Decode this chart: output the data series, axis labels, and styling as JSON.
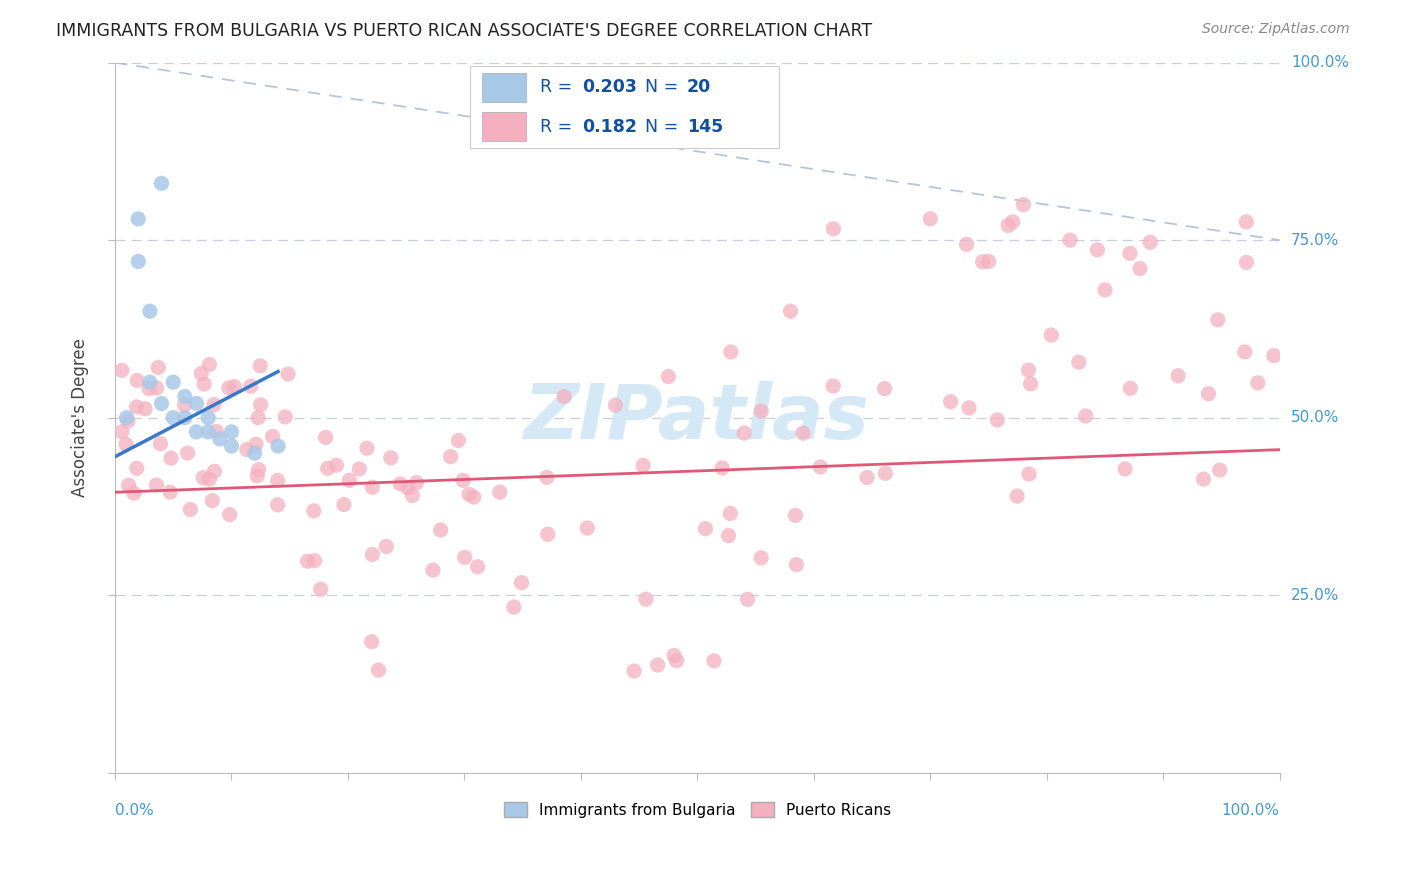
{
  "title": "IMMIGRANTS FROM BULGARIA VS PUERTO RICAN ASSOCIATE'S DEGREE CORRELATION CHART",
  "source": "Source: ZipAtlas.com",
  "ylabel": "Associate's Degree",
  "bulgaria_color": "#a8c8e8",
  "puerto_rico_color": "#f4b0c0",
  "trend_bulgaria_color": "#3a78c9",
  "trend_pr_color": "#e05878",
  "diag_color": "#a0b8d0",
  "bg_color": "#ffffff",
  "grid_color": "#c8cedd",
  "label_color": "#4499cc",
  "title_color": "#222222",
  "legend_text_color": "#1050a0",
  "watermark_color": "#d5e8f5",
  "r1": "0.203",
  "n1": "20",
  "r2": "0.182",
  "n2": "145"
}
